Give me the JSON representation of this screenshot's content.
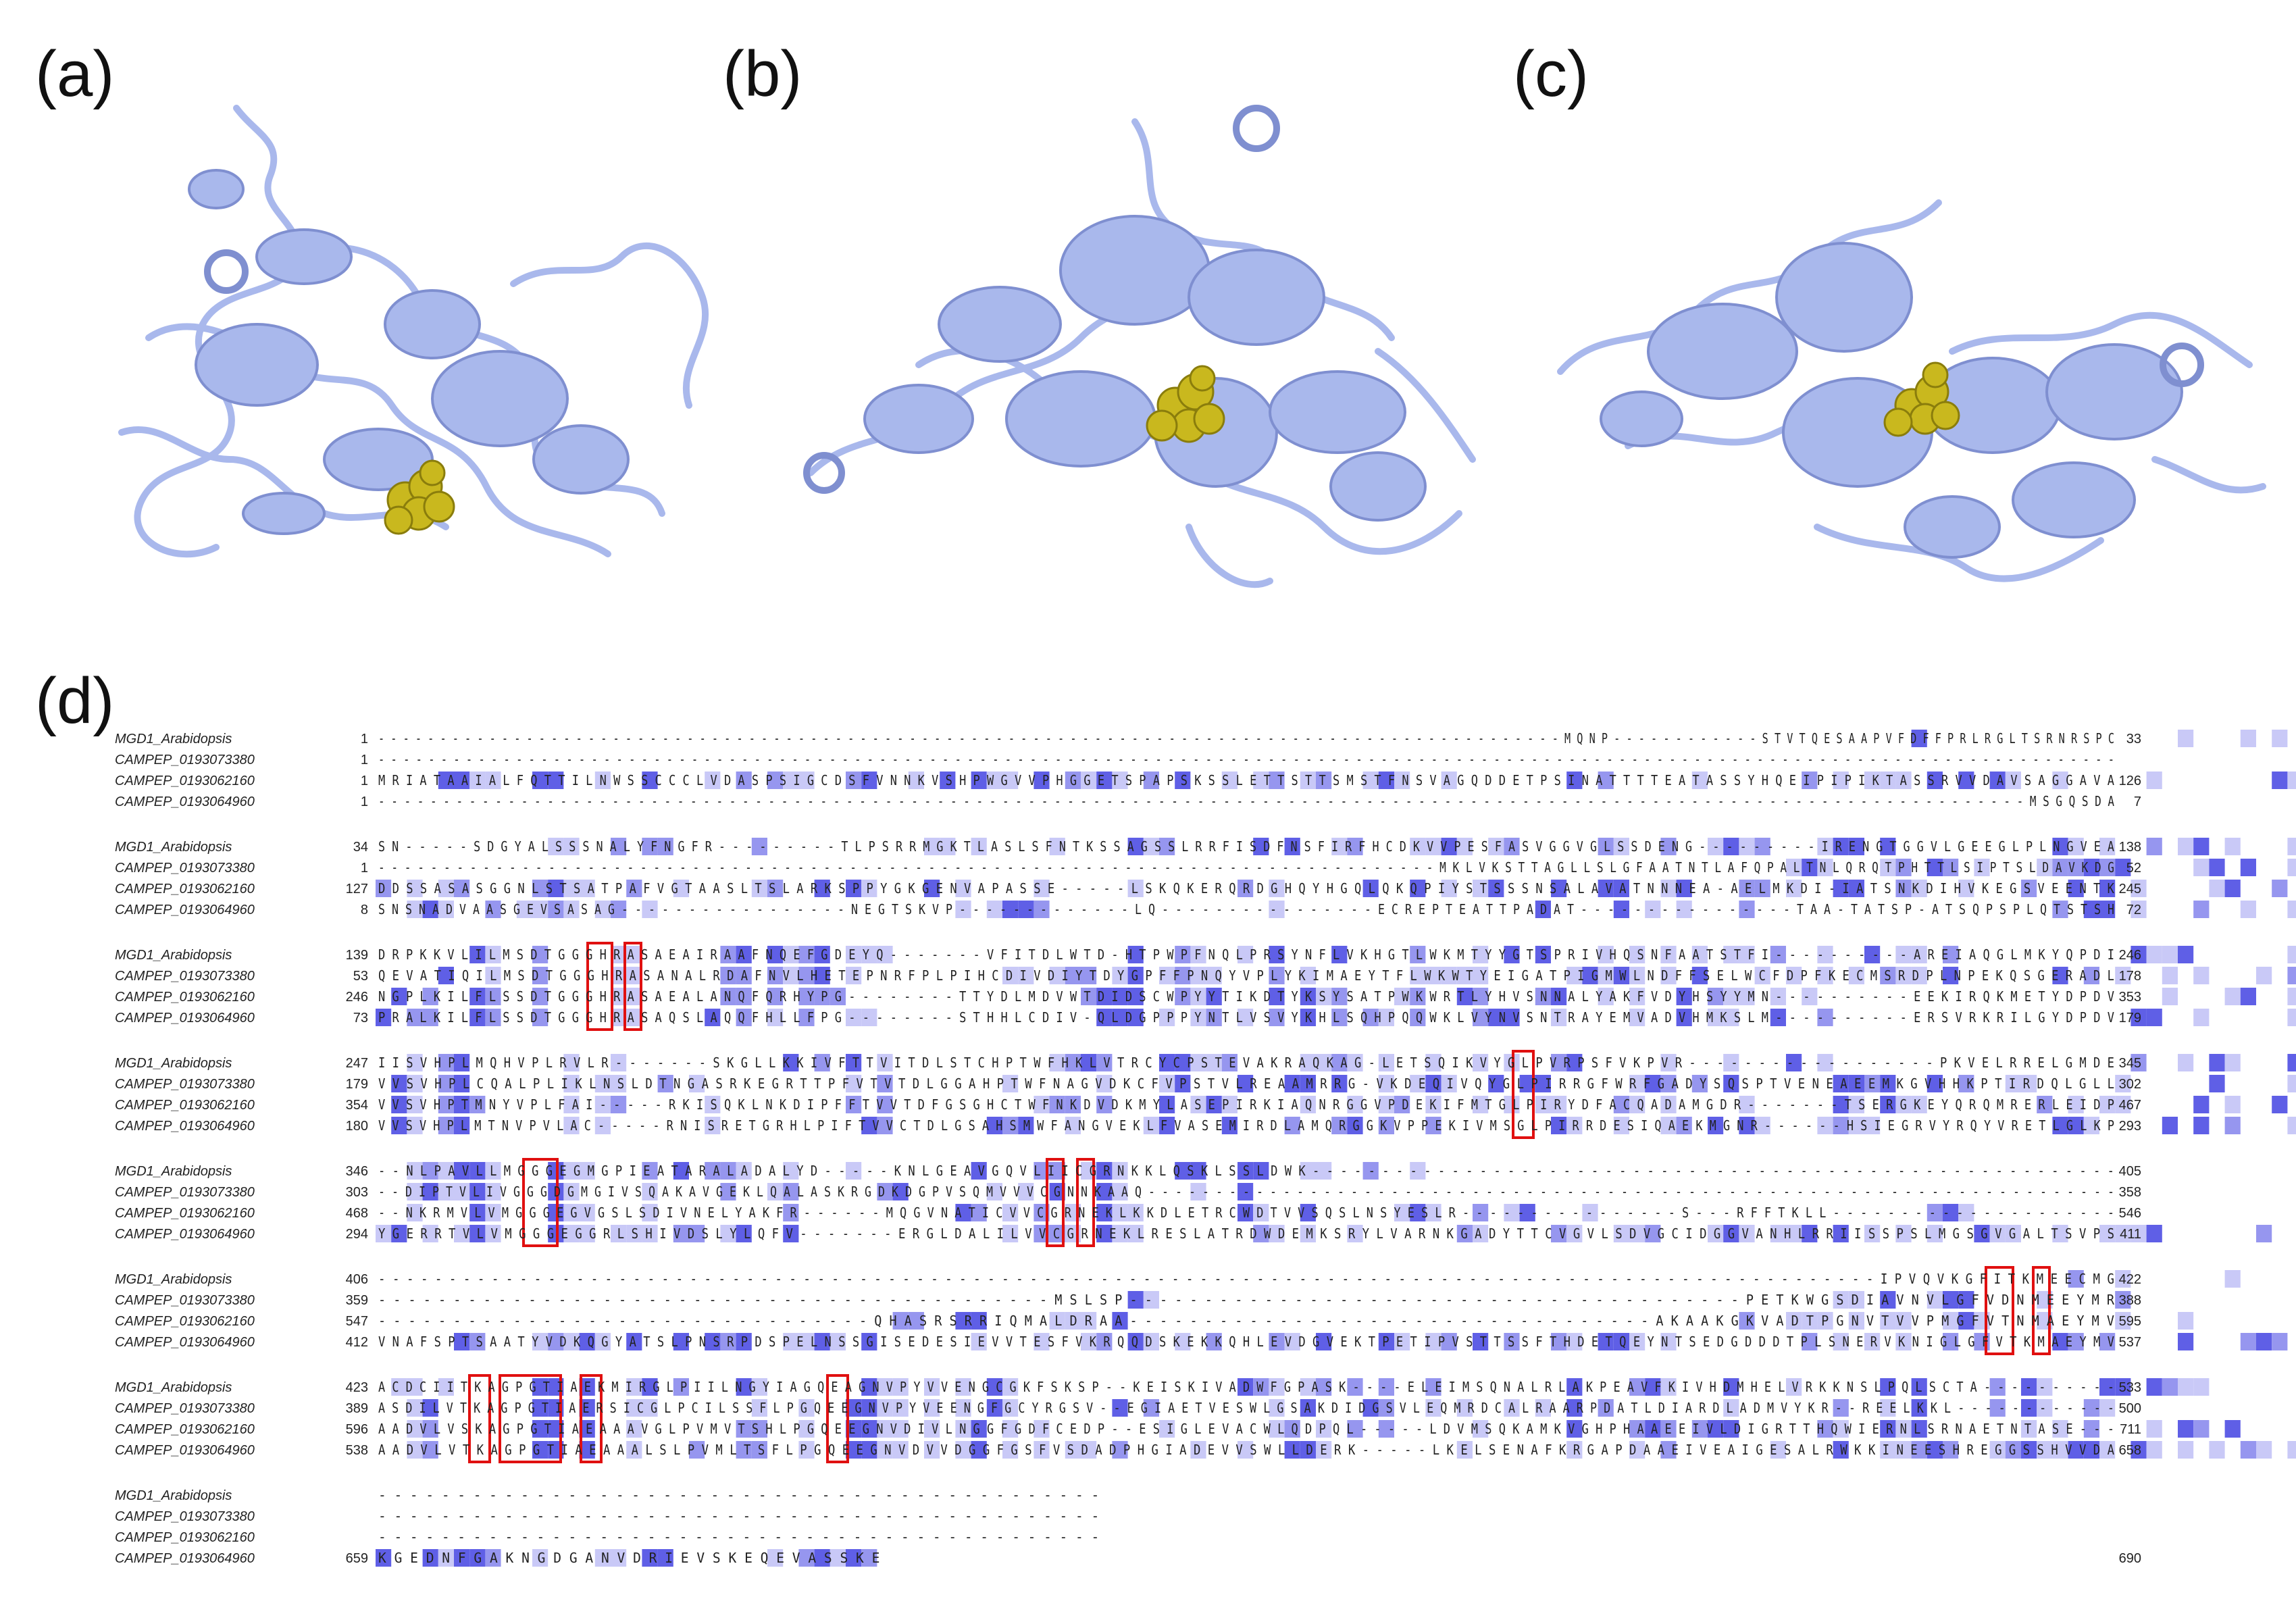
{
  "panels": [
    {
      "label": "(a)"
    },
    {
      "label": "(b)"
    },
    {
      "label": "(c)"
    },
    {
      "label": "(d)"
    }
  ],
  "colors": {
    "ribbon": "#a9b8ec",
    "ribbon_dark": "#7f8fd0",
    "ligand": "#c9b81e",
    "ligand_dark": "#8a7d0c",
    "conserved_high": "#5f5fe6",
    "conserved_mid": "#9696ef",
    "conserved_low": "#c9c9f7",
    "motif_box": "#e01010"
  },
  "alignment": {
    "names": [
      "MGD1_Arabidopsis",
      "CAMPEP_0193073380",
      "CAMPEP_0193062160",
      "CAMPEP_0193064960"
    ],
    "blocks": [
      {
        "starts": [
          "1",
          "1",
          "1",
          "1"
        ],
        "seqs": [
          "- - - - - - - - - - - - - - - - - - - - - - - - - - - - - - - - - - - - - - - - - - - - - - - - - - - - - - - - - - - - - - - - - - - - - - - - - - - - - - - - - - - - - - - - - - - - - - - - M Q N P - - - - - - - - - - - - S T V T Q E S A A P V F D F F P R L R G L T S R N R S P C",
          "- - - - - - - - - - - - - - - - - - - - - - - - - - - - - - - - - - - - - - - - - - - - - - - - - - - - - - - - - - - - - - - - - - - - - - - - - - - - - - - - - - - - - - - - - - - - - - - - - - - - - - - - - - - - - - - - - - - - - - - - - - - - - - - - - - - - - - - - - - -",
          "M R I A T A A I A L F Q T T I L N W S S C C C L V D A S P S I G C D S F V N N K V S H P W G V V P H G G E T S P A P S K S S L E T T S T T S M S T F N S V A G Q D D E T P S I N A T T T T E A T A S S Y H Q E I P I P I K T A S S R V V D A V S A G G A V A",
          "- - - - - - - - - - - - - - - - - - - - - - - - - - - - - - - - - - - - - - - - - - - - - - - - - - - - - - - - - - - - - - - - - - - - - - - - - - - - - - - - - - - - - - - - - - - - - - - - - - - - - - - - - - - - - - - - - - - - - - - - - - - - - - - M S G Q S D A"
        ],
        "ends": [
          "33",
          "",
          "126",
          "7"
        ]
      },
      {
        "starts": [
          "34",
          "1",
          "127",
          "8"
        ],
        "seqs": [
          "S N - - - - - S D G Y A L S S S N A L Y F N G F R - - - - - - - - - T L P S R R M G K T L A S L S F N T K S S A G S S L R R F I S D F N S F I R F H C D K V V P E S F A S V G G V G L S S D E N G - - - - - - - - - I R E N G T G G V L G E E G L P L N G V E A",
          "- - - - - - - - - - - - - - - - - - - - - - - - - - - - - - - - - - - - - - - - - - - - - - - - - - - - - - - - - - - - - - - - - - - - - - - - - - - - - - - - - M K L V K S T T A G L L S L G F A A T N T L A F Q P A L T N L Q R Q T P H T T L S I P T S L D A V K D G",
          "D D S S A S A S G G N L S T S A T P A F V G T A A S L T S L A R K S P P Y G K G E N V A P A S S E - - - - - L S K Q K E R Q R D G H Q Y H G Q L Q K Q P I Y S T S S S N S A L A V A T N N N E A - A E L M K D I - I A T S N K D I H V K E G S V E E N T K",
          "S N S N A D V A A S G E V S A S A G - - - - - - - - - - - - - - - - - N E G T S K V P - - - - - - - - - - - - - L Q - - - - - - - - - - - - - - - - E C R E P T E A T T P A D A T - - - - - - - - - - - - - - - - T A A - T A T S P - A T S Q P S P L Q T S T S H"
        ],
        "ends": [
          "138",
          "52",
          "245",
          "72"
        ]
      },
      {
        "starts": [
          "139",
          "53",
          "246",
          "73"
        ],
        "seqs": [
          "D R P K K V L I L M S D T G G G H R A S A E A I R A A F N Q E F G D E Y Q - - - - - - - V F I T D L W T D - H T P W P F N Q L P R S Y N F L V K H G T L W K M T Y Y G T S P R I V H Q S N F A A T S T F I - - - - - - - - - - A R E I A Q G L M K Y Q P D I",
          "Q E V A T I Q I L M S D T G G G H R A S A N A L R D A F N V L H E T E P N R F P L P I H C D I V D I Y T D Y G P F F P N Q Y V P L Y K I M A E Y T F L W K W T Y E I G A T P I G M W L N D F F S E L W C F D P F K E C M S R D P L N P E K Q S G E R A D L",
          "N G P L K I L F L S S D T G G G H R A S A E A L A N Q F Q R H Y P G - - - - - - - - T T Y D L M D V W T D I D S C W P Y Y T I K D T Y K S Y S A T P W K W R T L Y H V S N N A L Y A K F V D Y H S Y Y M N - - - - - - - - - - E E K I R Q K M E T Y D P D V",
          "P R A L K I L F L S S D T G G G H R A S A Q S L A Q Q F H L L F P G - - - - - - - - S T H H L C D I V - Q L D G P P P Y N T L V S V Y K H L S Q H P Q Q W K L V Y N V S N T R A Y E M V A D V H M K S L M - - - - - - - - - - E R S V R K R I L G Y D P D V"
        ],
        "ends": [
          "246",
          "178",
          "353",
          "179"
        ]
      },
      {
        "starts": [
          "247",
          "179",
          "354",
          "180"
        ],
        "seqs": [
          "I I S V H P L M Q H V P L R V L R - - - - - - - S K G L L K K I V F T T V I T D L S T C H P T W F H K L V T R C Y C P S T E V A K R A Q K A G - L E T S Q I K V Y G L P V R P S F V K P V R - - - - - - - - - - - - - - - - - - P K V E L R R E L G M D E",
          "V V S V H P L C Q A L P L I K L N S L D T N G A S R K E G R T T P F V T V T D L G G A H P T W F N A G V D K C F V P S T V L R E A A M R R G - V K D E Q I V Q Y G L P I R R G F W R F G A D Y S Q S P T V E N E A E E M K G V H H K P T I R D Q L G L L",
          "V V S V H P T M N Y V P L F A I - - - - - R K I S Q K L N K D I P F F T V V T D F G S G H C T W F N K D V D K M Y L A S E P I R K I A Q N R G G V P D E K I F M T G L P I R Y D F A C Q A D A M G D R - - - - - - - T S E R G K E Y Q R Q M R E R L E I D P",
          "V V S V H P L M T N V P V L A C - - - - - R N I S R E T G R H L P I F T V V C T D L G S A H S M W F A N G V E K L F V A S E M I R D L A M Q R G G K V P P E K I V M S G L P I R R D E S I Q A E K M G N R - - - - - - H S I E G R V Y R Q Y V R E T L G L K P"
        ],
        "ends": [
          "345",
          "302",
          "467",
          "293"
        ]
      },
      {
        "starts": [
          "346",
          "303",
          "468",
          "294"
        ],
        "seqs": [
          "- - N L P A V L L M G G G E G M G P I E A T A R A L A D A L Y D - - - - - K N L G E A V G Q V L I I C G R N K K L Q S K L S S L D W K - - - - - - - - - - - - - - - - - - - - - - - - - - - - - - - - - - - - - - - - - - - - - - - - - - - - - - - - - -",
          "- - D I P T V L I V G G G D G M G I V S Q A K A V G E K L Q A L A S K R G D K D G P V S Q M V V V C G N N K A A Q - - - - - - - - - - - - - - - - - - - - - - - - - - - - - - - - - - - - - - - - - - - - - - - - - - - - - - - - - - - - - - - - - - - - - - - -",
          "- - N K R M V L V M G G G E G V G S L S D I V N E L Y A K F R - - - - - - M Q G V N A T I C V V C G R N E K L K K D L E T R C W D T V V S Q S L N S Y E S L R - - - - - - - - - - - - - - - - S - - - R F F T K L L - - - - - - - - - - - - - - - - - - - - -",
          "Y G E R R T V L V M G G G E G G R L S H I V D S L Y L Q F V - - - - - - - E R G L D A L I L V V C G R N E K L R E S L A T R D W D E M K S R Y L V A R N K G A D Y T T C V G V L S D V G C I D G G V A N H L R R I I S S P S L M G S G V G A L T S V P S"
        ],
        "ends": [
          "405",
          "358",
          "546",
          "411"
        ]
      },
      {
        "starts": [
          "406",
          "359",
          "547",
          "412"
        ],
        "seqs": [
          "- - - - - - - - - - - - - - - - - - - - - - - - - - - - - - - - - - - - - - - - - - - - - - - - - - - - - - - - - - - - - - - - - - - - - - - - - - - - - - - - - - - - - - - - - - - - - - - - - - - - - - - - - - I P V Q V K G F I T K M E E C M G",
          "- - - - - - - - - - - - - - - - - - - - - - - - - - - - - - - - - - - - - - - - - - - - - M S L S P - - - - - - - - - - - - - - - - - - - - - - - - - - - - - - - - - - - - - - - - - P E T K W G S D I A V N V L G F V D N M E E Y M R",
          "- - - - - - - - - - - - - - - - - - - - - - - - - - - - - - - - - Q H A S R S R R I Q M A L D R A A - - - - - - - - - - - - - - - - - - - - - - - - - - - - - - - - - - - A K A A K G K V A D T P G N V T V V P M G F V T N M A E Y M V",
          "V N A F S P T S A A T Y V D K Q G Y A T S L P N S R P D S P E L N S S G I S E D E S I E V V T E S F V K R Q Q D S K E K K Q H L E V D G V E K T P E T I P V S T T S S F T H D E T Q E Y N T S E D G D D D T P L S N E R V K N I G L G F V T K M A E Y M V"
        ],
        "ends": [
          "422",
          "388",
          "595",
          "537"
        ]
      },
      {
        "starts": [
          "423",
          "389",
          "596",
          "538"
        ],
        "seqs": [
          "A C D C I I T K A G P G T I A E K M I R G L P I I L N G Y I A G Q E A G N V P Y V V E N G C G K F S K S P - - K E I S K I V A D W F G P A S K - - - - E L E I M S Q N A L R L A K P E A V F K I V H D M H E L V R K K N S L P Q L S C T A - - - - - - - - - -",
          "A S D I L V T K A G P G T I A E R S I C G L P C I L S S F L P G Q E E G N V P Y V E E N G F G C Y R G S V - - E G I A E T V E S W L G S A K D I D G S V L E Q M R D C A L R A A R P D A T L D I A R D L A D M V Y K R - - R E E L K K L - - - - - - - - - - - -",
          "A A D V L V S K A G P G T I A E A A A V G L P V M V T S H L P G Q E E G N V D I V L N G G F G D F C E D P - - E S I G L E V A C W L Q D P Q L - - - - - L D V M S Q K A M K V G H P H A A E E I V L D I G R T T H Q W I E R N L S R N A E T N T A S E - - -",
          "A A D V L V T K A G P G T I A E A A A L S L P V M L T S F L P G Q E E G N V D V V D G G F G S F V S D A D P H G I A D E V V S W L L D E R K - - - - - L K E L S E N A F K R G A P D A A E I V E A I G E S A L R W K K I N E E S H R E G G S S H V V D A"
        ],
        "ends": [
          "533",
          "500",
          "711",
          "658"
        ]
      },
      {
        "starts": [
          "",
          "",
          "",
          "659"
        ],
        "seqs": [
          "- - - - - - - - - - - - - - - - - - - - - - - - - - - - - - - - - - - - - - - - - - - - - -",
          "- - - - - - - - - - - - - - - - - - - - - - - - - - - - - - - - - - - - - - - - - - - - - -",
          "- - - - - - - - - - - - - - - - - - - - - - - - - - - - - - - - - - - - - - - - - - - - - -",
          "K G E D N F G A K N G D G A N V D R I E V S K E Q E V A S S K E"
        ],
        "ends": [
          "",
          "",
          "",
          "690"
        ]
      }
    ]
  }
}
